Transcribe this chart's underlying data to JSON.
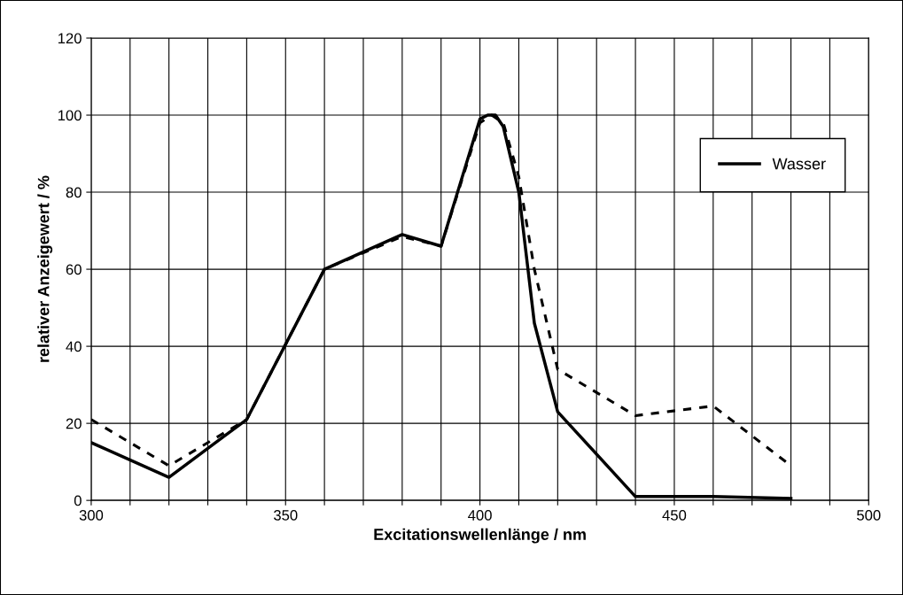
{
  "chart_data": {
    "type": "line",
    "xlabel": "Excitationswellenlänge / nm",
    "ylabel": "relativer Anzeigewert / %",
    "xlim": [
      300,
      500
    ],
    "ylim": [
      0,
      120
    ],
    "xticks": [
      300,
      {
        "value": 310,
        "label": null
      },
      {
        "value": 320,
        "label": null
      },
      {
        "value": 330,
        "label": null
      },
      {
        "value": 340,
        "label": null
      },
      350,
      {
        "value": 360,
        "label": null
      },
      {
        "value": 370,
        "label": null
      },
      {
        "value": 380,
        "label": null
      },
      {
        "value": 390,
        "label": null
      },
      400,
      {
        "value": 410,
        "label": null
      },
      {
        "value": 420,
        "label": null
      },
      {
        "value": 430,
        "label": null
      },
      {
        "value": 440,
        "label": null
      },
      450,
      {
        "value": 460,
        "label": null
      },
      {
        "value": 470,
        "label": null
      },
      {
        "value": 480,
        "label": null
      },
      {
        "value": 490,
        "label": null
      },
      500
    ],
    "yticks": [
      0,
      20,
      40,
      60,
      80,
      100,
      120
    ],
    "grid": true,
    "legend": "top right",
    "series": [
      {
        "name": "Wasser",
        "color": "#000000",
        "line_style": "solid",
        "x": [
          300,
          320,
          340,
          360,
          380,
          390,
          400,
          402,
          404,
          406,
          410,
          414,
          420,
          440,
          460,
          480
        ],
        "values": [
          15,
          6,
          21,
          60,
          69,
          66,
          99,
          100,
          100,
          97,
          80,
          46,
          23,
          1,
          1,
          0.5
        ]
      },
      {
        "color": "#000000",
        "line_style": "dashed",
        "x": [
          300,
          320,
          340,
          360,
          380,
          390,
          400,
          403,
          406,
          410,
          414,
          420,
          440,
          460,
          480
        ],
        "values": [
          21,
          9,
          21,
          60,
          68.5,
          66,
          98,
          100,
          98,
          84,
          60,
          34,
          22,
          24.5,
          9
        ]
      }
    ]
  }
}
